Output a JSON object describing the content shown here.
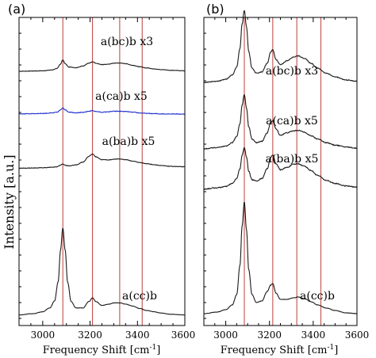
{
  "chart_data": [
    {
      "type": "line",
      "panel_label": "(a)",
      "xlabel": "Frequency Shift [cm",
      "xlabel_sup": "-1",
      "xlabel_close": "]",
      "ylabel": "Intensity [a.u.]",
      "xlim": [
        2900,
        3600
      ],
      "xticks": [
        "3000",
        "3200",
        "3400",
        "3600"
      ],
      "reference_lines_x": [
        3085,
        3210,
        3325,
        3420
      ],
      "colors": {
        "black": "#1a1a1a",
        "blue": "#2233cc",
        "reference": "#c0504d"
      },
      "series": [
        {
          "name": "a(bc)b x3",
          "color": "#1a1a1a",
          "noise": 0.6,
          "x": [
            2900,
            2960,
            3000,
            3040,
            3060,
            3075,
            3085,
            3095,
            3110,
            3140,
            3170,
            3195,
            3210,
            3225,
            3250,
            3280,
            3300,
            3325,
            3350,
            3380,
            3410,
            3440,
            3470,
            3500,
            3540,
            3600
          ],
          "y": [
            0.1,
            0.11,
            0.12,
            0.16,
            0.22,
            0.4,
            0.58,
            0.42,
            0.28,
            0.25,
            0.32,
            0.44,
            0.5,
            0.44,
            0.38,
            0.4,
            0.44,
            0.45,
            0.42,
            0.35,
            0.29,
            0.24,
            0.2,
            0.17,
            0.14,
            0.12
          ]
        },
        {
          "name": "a(ca)b x5",
          "color": "#2233cc",
          "noise": 0.9,
          "x": [
            2900,
            2960,
            3000,
            3040,
            3060,
            3075,
            3085,
            3095,
            3110,
            3140,
            3170,
            3195,
            3210,
            3225,
            3250,
            3280,
            3300,
            3325,
            3350,
            3380,
            3410,
            3440,
            3470,
            3500,
            3540,
            3600
          ],
          "y": [
            0.04,
            0.05,
            0.06,
            0.08,
            0.11,
            0.2,
            0.3,
            0.21,
            0.12,
            0.09,
            0.1,
            0.15,
            0.18,
            0.14,
            0.11,
            0.13,
            0.15,
            0.15,
            0.14,
            0.11,
            0.08,
            0.06,
            0.05,
            0.04,
            0.04,
            0.03
          ]
        },
        {
          "name": "a(ba)b x5",
          "color": "#1a1a1a",
          "noise": 0.7,
          "x": [
            2900,
            2960,
            3000,
            3040,
            3060,
            3075,
            3085,
            3095,
            3110,
            3140,
            3170,
            3195,
            3210,
            3225,
            3250,
            3280,
            3300,
            3325,
            3350,
            3380,
            3410,
            3440,
            3470,
            3500,
            3540,
            3600
          ],
          "y": [
            0.02,
            0.03,
            0.04,
            0.06,
            0.08,
            0.15,
            0.2,
            0.14,
            0.12,
            0.16,
            0.28,
            0.52,
            0.62,
            0.5,
            0.38,
            0.37,
            0.4,
            0.41,
            0.38,
            0.32,
            0.26,
            0.21,
            0.17,
            0.13,
            0.1,
            0.08
          ]
        },
        {
          "name": "a(cc)b",
          "color": "#1a1a1a",
          "noise": 0.15,
          "x": [
            2900,
            2960,
            3000,
            3030,
            3050,
            3065,
            3075,
            3085,
            3095,
            3105,
            3120,
            3140,
            3170,
            3195,
            3210,
            3225,
            3250,
            3280,
            3300,
            3325,
            3350,
            3380,
            3410,
            3440,
            3470,
            3500,
            3540,
            3600
          ],
          "y": [
            0.03,
            0.05,
            0.08,
            0.14,
            0.25,
            0.55,
            1.05,
            1.4,
            1.05,
            0.55,
            0.24,
            0.14,
            0.14,
            0.24,
            0.3,
            0.24,
            0.18,
            0.2,
            0.22,
            0.22,
            0.2,
            0.17,
            0.13,
            0.1,
            0.08,
            0.06,
            0.04,
            0.03
          ]
        }
      ]
    },
    {
      "type": "line",
      "panel_label": "(b)",
      "xlabel": "Frequency Shift [cm",
      "xlabel_sup": "-1",
      "xlabel_close": "]",
      "xlim": [
        2900,
        3600
      ],
      "xticks": [
        "3000",
        "3200",
        "3400",
        "3600"
      ],
      "reference_lines_x": [
        3085,
        3215,
        3325,
        3435
      ],
      "series": [
        {
          "name": "a(bc)b x3",
          "color": "#1a1a1a",
          "noise": 0.4,
          "x": [
            2900,
            2960,
            3000,
            3030,
            3050,
            3065,
            3075,
            3085,
            3095,
            3105,
            3120,
            3140,
            3165,
            3190,
            3205,
            3215,
            3230,
            3250,
            3280,
            3310,
            3330,
            3360,
            3390,
            3420,
            3460,
            3500,
            3550,
            3600
          ],
          "y": [
            0.05,
            0.07,
            0.1,
            0.17,
            0.3,
            0.6,
            1.0,
            1.22,
            0.95,
            0.55,
            0.28,
            0.2,
            0.22,
            0.36,
            0.54,
            0.58,
            0.42,
            0.34,
            0.4,
            0.46,
            0.48,
            0.44,
            0.36,
            0.28,
            0.2,
            0.14,
            0.09,
            0.07
          ]
        },
        {
          "name": "a(ca)b x5",
          "color": "#1a1a1a",
          "noise": 0.5,
          "x": [
            2900,
            2960,
            3000,
            3030,
            3050,
            3065,
            3075,
            3085,
            3095,
            3105,
            3120,
            3140,
            3165,
            3190,
            3205,
            3215,
            3230,
            3250,
            3280,
            3310,
            3330,
            3360,
            3390,
            3420,
            3460,
            3500,
            3550,
            3600
          ],
          "y": [
            0.04,
            0.06,
            0.08,
            0.14,
            0.24,
            0.45,
            0.75,
            0.92,
            0.7,
            0.4,
            0.2,
            0.14,
            0.16,
            0.3,
            0.46,
            0.5,
            0.36,
            0.26,
            0.3,
            0.33,
            0.34,
            0.31,
            0.25,
            0.2,
            0.14,
            0.1,
            0.07,
            0.05
          ]
        },
        {
          "name": "a(ba)b x5",
          "color": "#1a1a1a",
          "noise": 0.5,
          "x": [
            2900,
            2960,
            3000,
            3030,
            3050,
            3065,
            3075,
            3085,
            3095,
            3105,
            3120,
            3140,
            3165,
            3190,
            3205,
            3215,
            3230,
            3250,
            3280,
            3310,
            3330,
            3360,
            3390,
            3420,
            3460,
            3500,
            3550,
            3600
          ],
          "y": [
            0.03,
            0.05,
            0.07,
            0.12,
            0.2,
            0.36,
            0.58,
            0.7,
            0.55,
            0.32,
            0.18,
            0.16,
            0.2,
            0.36,
            0.54,
            0.58,
            0.44,
            0.34,
            0.38,
            0.43,
            0.44,
            0.4,
            0.33,
            0.25,
            0.17,
            0.12,
            0.08,
            0.06
          ]
        },
        {
          "name": "a(cc)b",
          "color": "#1a1a1a",
          "noise": 0.15,
          "x": [
            2900,
            2960,
            3000,
            3030,
            3050,
            3065,
            3075,
            3085,
            3095,
            3105,
            3120,
            3140,
            3165,
            3190,
            3205,
            3215,
            3230,
            3250,
            3280,
            3310,
            3330,
            3360,
            3390,
            3420,
            3460,
            3500,
            3550,
            3600
          ],
          "y": [
            0.04,
            0.06,
            0.09,
            0.15,
            0.28,
            0.65,
            1.15,
            1.45,
            1.1,
            0.6,
            0.28,
            0.18,
            0.2,
            0.32,
            0.4,
            0.42,
            0.3,
            0.22,
            0.22,
            0.24,
            0.25,
            0.23,
            0.19,
            0.15,
            0.11,
            0.08,
            0.05,
            0.04
          ]
        }
      ]
    }
  ]
}
